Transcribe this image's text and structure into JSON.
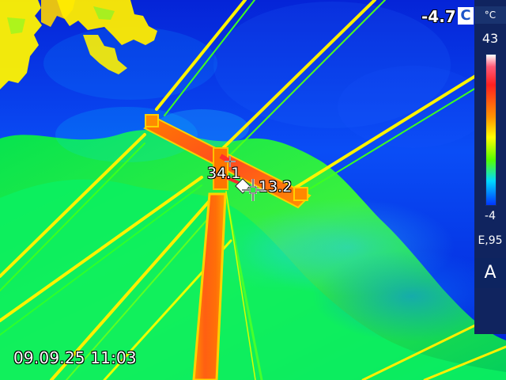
{
  "thermal_view": {
    "overlay": {
      "temperature": "-4.7",
      "unit": "C",
      "spot_1": "34.1",
      "spot_2": "13.2",
      "timestamp": "09.09.25 11:03"
    },
    "scale": {
      "unit": "°C",
      "max": "43",
      "min": "-4",
      "emissivity": "E,95",
      "mode": "A"
    },
    "colors": {
      "hot": "#ff4a1d",
      "warm": "#ffd100",
      "cool": "#1a43ff",
      "mid": "#6bff2b"
    },
    "icons": {
      "crosshair": "crosshair-icon",
      "marker": "measurement-marker-icon"
    }
  }
}
